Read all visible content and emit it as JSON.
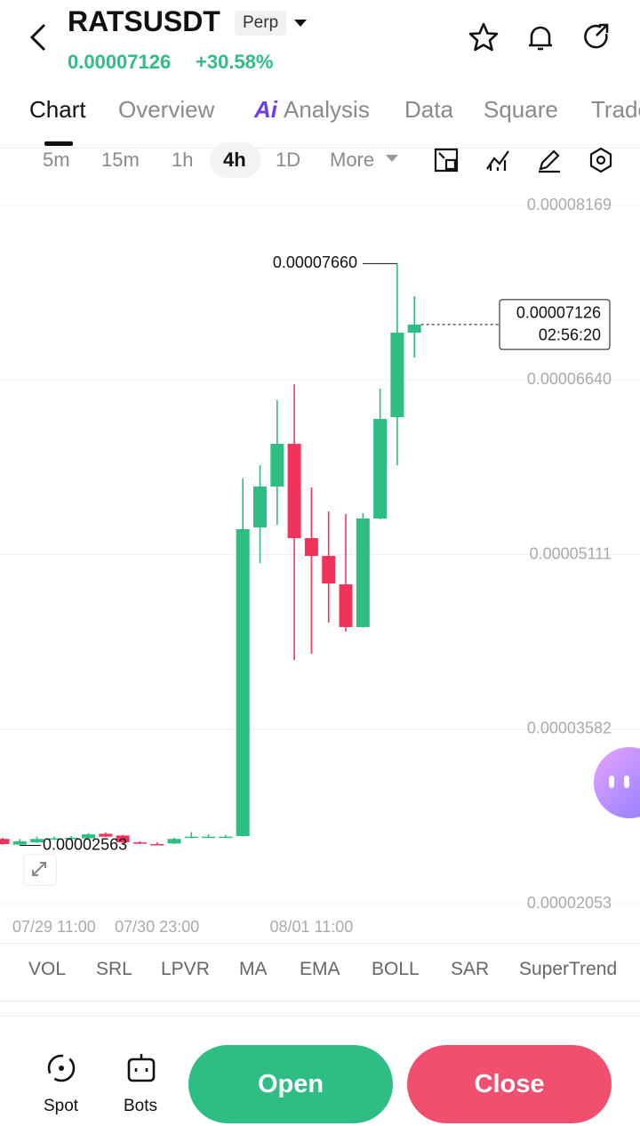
{
  "header": {
    "symbol": "RATSUSDT",
    "contract": "Perp",
    "price": "0.00007126",
    "change": "+30.58%"
  },
  "tabs": [
    "Chart",
    "Overview",
    "Analysis",
    "Data",
    "Square",
    "Trade"
  ],
  "ai_badge": "Ai",
  "intervals": [
    "5m",
    "15m",
    "1h",
    "4h",
    "1D",
    "More"
  ],
  "indicators": [
    "VOL",
    "SRL",
    "LPVR",
    "MA",
    "EMA",
    "BOLL",
    "SAR",
    "SuperTrend"
  ],
  "bottom_nav": [
    "Spot",
    "Bots"
  ],
  "actions": [
    "Open",
    "Close"
  ],
  "chart_data": {
    "type": "candlestick",
    "categories": [
      null,
      null,
      null,
      "07/29 11:00",
      null,
      null,
      null,
      null,
      null,
      "07/30 23:00",
      null,
      null,
      null,
      null,
      null,
      null,
      null,
      null,
      "08/01 11:00",
      null,
      null,
      null,
      null,
      null,
      null
    ],
    "open": [
      2.62e-05,
      2.57e-05,
      2.59e-05,
      2.62e-05,
      2.625e-05,
      2.625e-05,
      2.665e-05,
      2.65e-05,
      2.59e-05,
      2.575e-05,
      2.58e-05,
      2.63e-05,
      2.635e-05,
      2.635e-05,
      2.645e-05,
      5.349e-05,
      5.707e-05,
      6.081e-05,
      5.255e-05,
      5.099e-05,
      4.85e-05,
      4.476e-05,
      5.427e-05,
      6.315e-05,
      7.055e-05
    ],
    "close": [
      2.575e-05,
      2.6e-05,
      2.62e-05,
      2.625e-05,
      2.63e-05,
      2.66e-05,
      2.64e-05,
      2.59e-05,
      2.58e-05,
      2.568e-05,
      2.62e-05,
      2.64e-05,
      2.64e-05,
      2.64e-05,
      5.333e-05,
      5.707e-05,
      6.081e-05,
      5.255e-05,
      5.099e-05,
      4.858e-05,
      4.476e-05,
      5.427e-05,
      6.299e-05,
      7.055e-05,
      7.126e-05
    ],
    "high": [
      2.63e-05,
      2.62e-05,
      2.64e-05,
      2.64e-05,
      2.645e-05,
      2.67e-05,
      2.675e-05,
      2.655e-05,
      2.6e-05,
      2.59e-05,
      2.63e-05,
      2.68e-05,
      2.66e-05,
      2.655e-05,
      5.777e-05,
      5.894e-05,
      6.463e-05,
      6.603e-05,
      5.699e-05,
      5.489e-05,
      5.466e-05,
      5.474e-05,
      6.564e-05,
      7.66e-05,
      7.374e-05
    ],
    "low": [
      2.57e-05,
      2.563e-05,
      2.585e-05,
      2.61e-05,
      2.615e-05,
      2.62e-05,
      2.635e-05,
      2.585e-05,
      2.575e-05,
      2.565e-05,
      2.575e-05,
      2.625e-05,
      2.63e-05,
      2.63e-05,
      2.64e-05,
      5.037e-05,
      5.372e-05,
      4.188e-05,
      4.242e-05,
      4.515e-05,
      4.437e-05,
      4.47e-05,
      5.42e-05,
      5.894e-05,
      6.837e-05
    ],
    "up_color": "#2ebd85",
    "down_color": "#f0335a",
    "grid": true,
    "ylim": [
      1.944e-05,
      8.255e-05
    ],
    "yticks": [
      {
        "value": 8.169e-05,
        "label": "0.00008169"
      },
      {
        "value": 6.64e-05,
        "label": "0.00006640"
      },
      {
        "value": 5.111e-05,
        "label": "0.00005111"
      },
      {
        "value": 3.582e-05,
        "label": "0.00003582"
      },
      {
        "value": 2.053e-05,
        "label": "0.00002053"
      }
    ],
    "high_label": {
      "value": 7.66e-05,
      "label": "0.00007660"
    },
    "low_label": {
      "value": 2.563e-05,
      "label": "0.00002563"
    },
    "last_price": {
      "value": 7.126e-05,
      "label": "0.00007126",
      "countdown": "02:56:20"
    }
  }
}
